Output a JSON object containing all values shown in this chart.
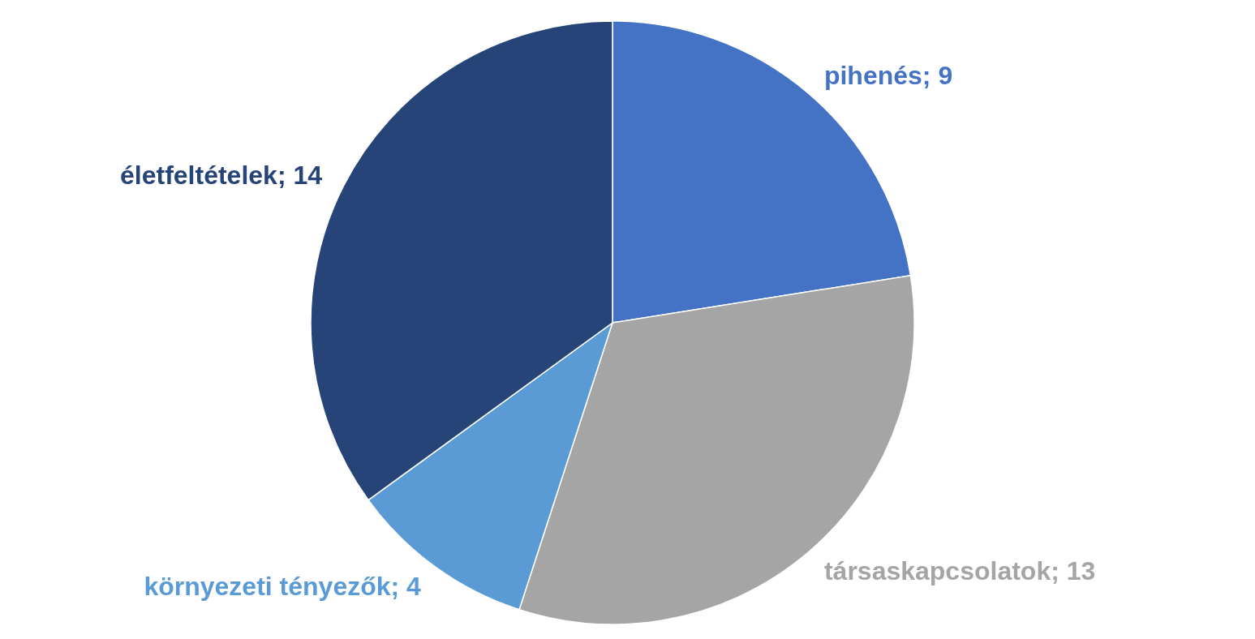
{
  "chart_data": {
    "type": "pie",
    "categories": [
      "pihenés; 9",
      "társaskapcsolatok; 13",
      "környezeti tényezők; 4",
      "életfeltételek; 14"
    ],
    "values": [
      9,
      13,
      4,
      14
    ],
    "colors": [
      "#4472c4",
      "#a5a5a5",
      "#5b9bd5",
      "#264478"
    ]
  }
}
